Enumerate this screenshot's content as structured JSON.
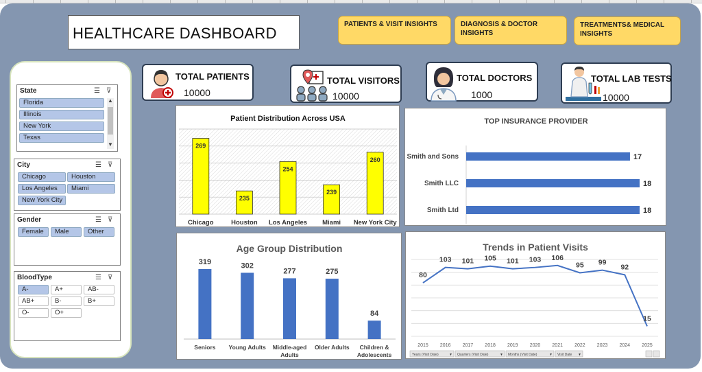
{
  "dashboard": {
    "title": "HEALTHCARE DASHBOARD"
  },
  "nav": {
    "patients_visit": "PATIENTS & VISIT INSIGHTS",
    "diagnosis_doctor": "DIAGNOSIS & DOCTOR INSIGHTS",
    "treatments": "TREATMENTS& MEDICAL INSIGHTS"
  },
  "slicers": {
    "state": {
      "title": "State",
      "items": [
        "Florida",
        "Illinois",
        "New York",
        "Texas"
      ]
    },
    "city": {
      "title": "City",
      "items": [
        "Chicago",
        "Houston",
        "Los Angeles",
        "Miami",
        "New York City"
      ]
    },
    "gender": {
      "title": "Gender",
      "items": [
        "Female",
        "Male",
        "Other"
      ]
    },
    "bloodtype": {
      "title": "BloodType",
      "items": [
        {
          "label": "A-",
          "selected": true
        },
        {
          "label": "A+",
          "selected": false
        },
        {
          "label": "AB-",
          "selected": false
        },
        {
          "label": "AB+",
          "selected": false
        },
        {
          "label": "B-",
          "selected": false
        },
        {
          "label": "B+",
          "selected": false
        },
        {
          "label": "O-",
          "selected": false
        },
        {
          "label": "O+",
          "selected": false
        }
      ]
    }
  },
  "kpis": {
    "patients": {
      "label": "TOTAL PATIENTS",
      "value": "10000",
      "icon": "patient-icon"
    },
    "visitors": {
      "label": "TOTAL VISITORS",
      "value": "10000",
      "icon": "visitors-icon"
    },
    "doctors": {
      "label": "TOTAL DOCTORS",
      "value": "1000",
      "icon": "doctor-icon"
    },
    "labtests": {
      "label": "TOTAL LAB TESTS",
      "value": "10000",
      "icon": "lab-test-icon"
    }
  },
  "colors": {
    "canvas": "#8496b0",
    "nav_button": "#ffd966",
    "bar_yellow": "#ffff00",
    "bar_blue": "#4472c4",
    "slicer_selected": "#b4c6e7"
  },
  "chart_data": [
    {
      "id": "patient-distribution",
      "type": "bar",
      "title": "Patient Distribution Across USA",
      "categories": [
        "Chicago",
        "Houston",
        "Los Angeles",
        "Miami",
        "New York City"
      ],
      "values": [
        269,
        235,
        254,
        239,
        260
      ],
      "ylim": [
        220,
        275
      ],
      "grid": true,
      "color": "#ffff00"
    },
    {
      "id": "insurance-provider",
      "type": "bar",
      "orientation": "horizontal",
      "title": "TOP INSURANCE PROVIDER",
      "categories": [
        "Smith and Sons",
        "Smith LLC",
        "Smith Ltd"
      ],
      "values": [
        17,
        18,
        18
      ],
      "xlim": [
        0,
        18
      ],
      "color": "#4472c4"
    },
    {
      "id": "age-group",
      "type": "bar",
      "title": "Age Group Distribution",
      "categories": [
        "Seniors",
        "Young Adults",
        "Middle-aged Adults",
        "Older Adults",
        "Children & Adolescents"
      ],
      "values": [
        319,
        302,
        277,
        275,
        84
      ],
      "ylim": [
        0,
        319
      ],
      "color": "#4472c4"
    },
    {
      "id": "visit-trends",
      "type": "line",
      "title": "Trends in Patient Visits",
      "x": [
        "2015",
        "2016",
        "2017",
        "2018",
        "2019",
        "2020",
        "2021",
        "2022",
        "2023",
        "2024",
        "2025"
      ],
      "values": [
        80,
        103,
        101,
        105,
        101,
        103,
        106,
        95,
        99,
        92,
        15
      ],
      "grid": true,
      "color": "#4472c4",
      "field_buttons": [
        "Years (Visit Date)",
        "Quarters (Visit Date)",
        "Months (Visit Date)",
        "Visit Date"
      ]
    }
  ]
}
